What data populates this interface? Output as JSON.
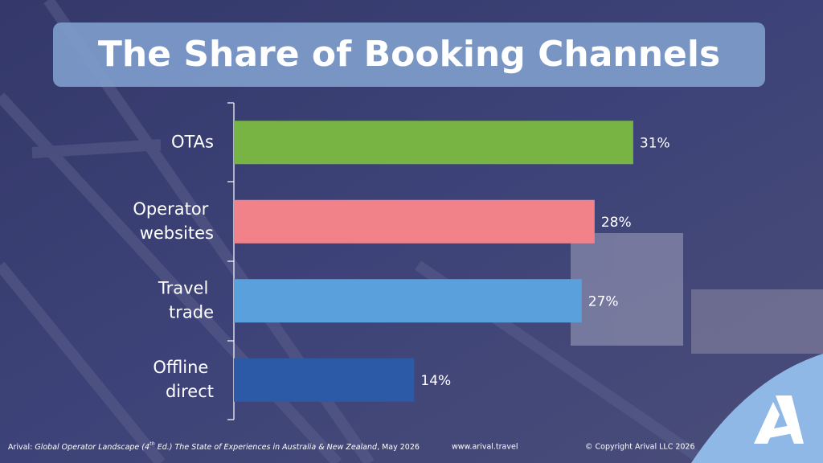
{
  "chart_data": {
    "type": "bar",
    "orientation": "horizontal",
    "title": "The Share of Booking Channels",
    "categories": [
      "OTAs",
      "Operator websites",
      "Travel trade",
      "Offline direct"
    ],
    "values": [
      31,
      28,
      27,
      14
    ],
    "value_labels": [
      "31%",
      "28%",
      "27%",
      "14%"
    ],
    "colors": [
      "#78b443",
      "#f2828a",
      "#5aa0dc",
      "#2d5aa6"
    ]
  },
  "footer": {
    "source": [
      "Arival: ",
      "Global Operator Landscape (4",
      "th",
      " Ed.)",
      " The State of Experiences in Australia & New Zealand",
      ", May 2026"
    ],
    "website": "www.arival.travel",
    "copyright": "© Copyright Arival LLC 2026"
  }
}
